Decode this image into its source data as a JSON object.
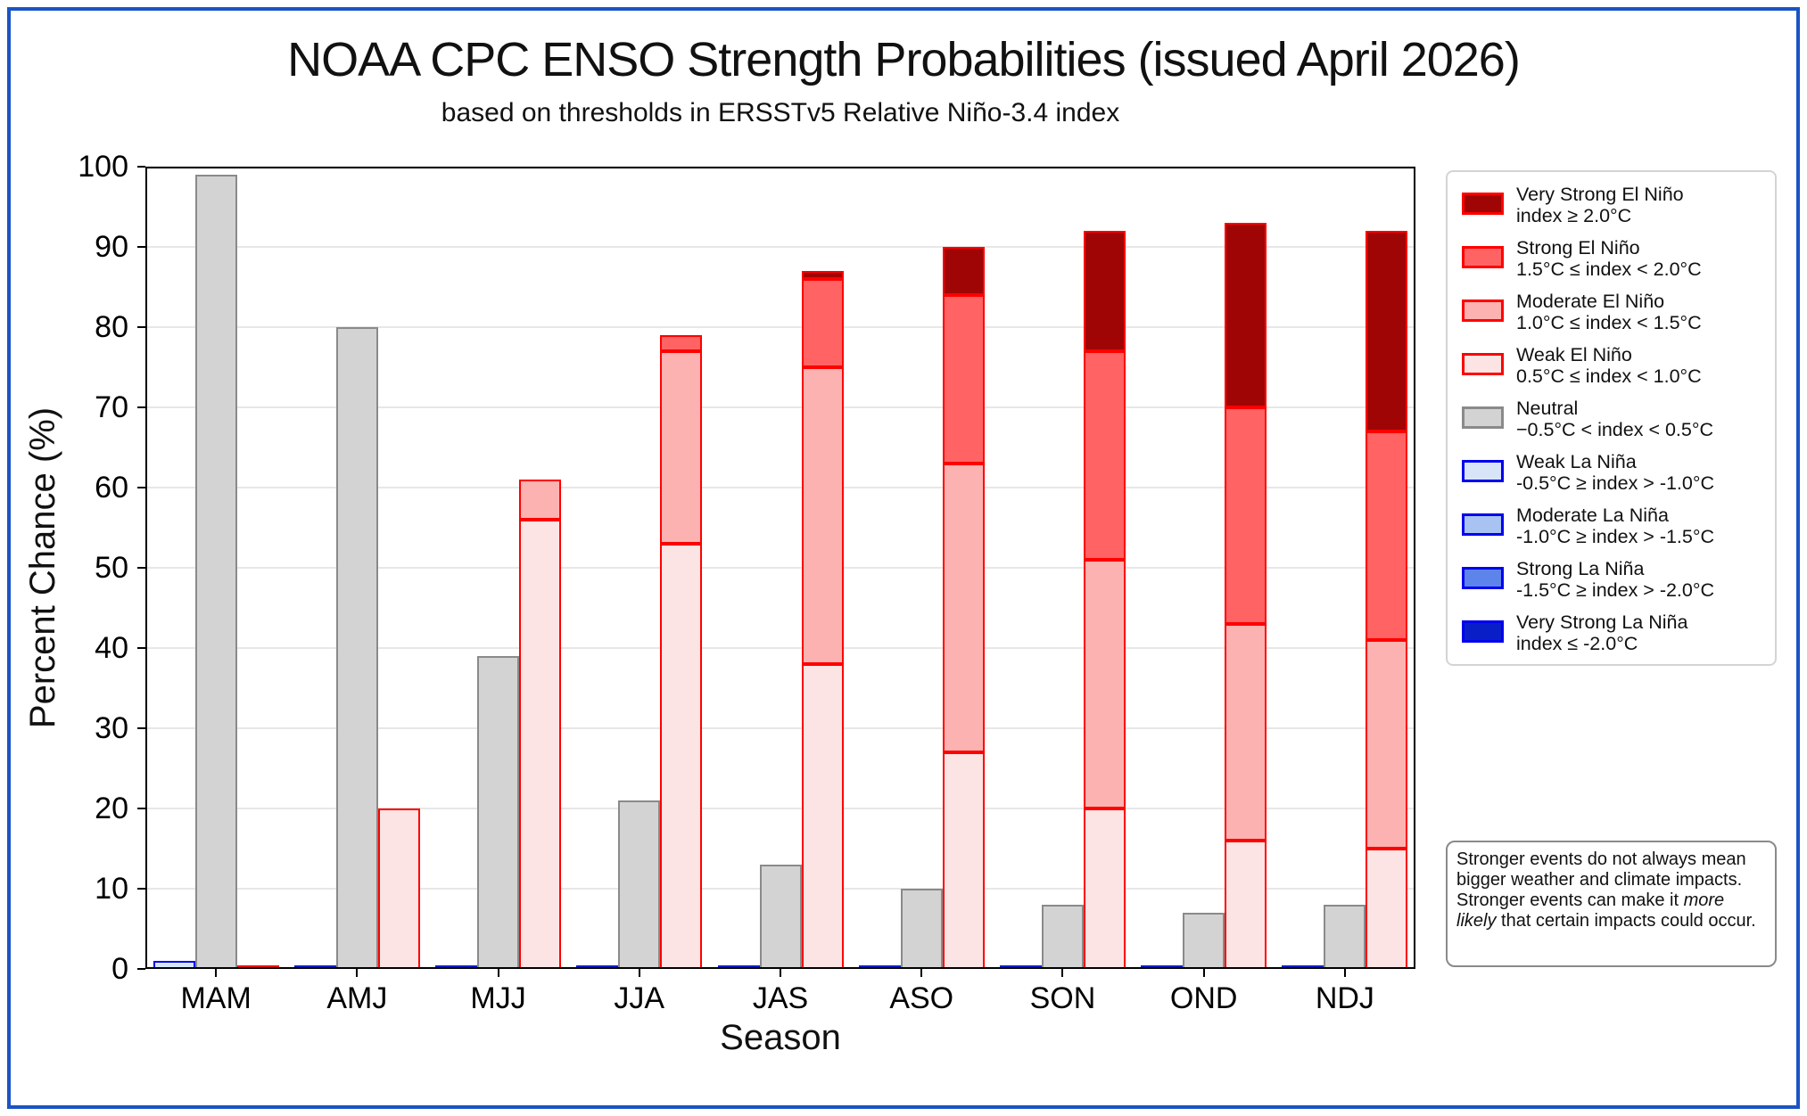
{
  "figure": {
    "border_color": "#1a54c4"
  },
  "title": "NOAA CPC ENSO Strength Probabilities (issued April 2026)",
  "subtitle": "based on thresholds in ERSSTv5 Relative Niño-3.4 index",
  "axes": {
    "xlabel": "Season",
    "ylabel": "Percent Chance (%)",
    "ytick_labels": [
      "0",
      "10",
      "20",
      "30",
      "40",
      "50",
      "60",
      "70",
      "80",
      "90",
      "100"
    ]
  },
  "chart_data": {
    "type": "bar",
    "subtype": "grouped_stacked_bars",
    "title": "NOAA CPC ENSO Strength Probabilities (issued April 2026)",
    "subtitle": "based on thresholds in ERSSTv5 Relative Niño-3.4 index",
    "xlabel": "Season",
    "ylabel": "Percent Chance (%)",
    "ylim": [
      0,
      100
    ],
    "yticks": [
      0,
      10,
      20,
      30,
      40,
      50,
      60,
      70,
      80,
      90,
      100
    ],
    "grid": true,
    "legend_position": "right",
    "categories": [
      "MAM",
      "AMJ",
      "MJJ",
      "JJA",
      "JAS",
      "ASO",
      "SON",
      "OND",
      "NDJ"
    ],
    "slots": {
      "la_nina": {
        "offset": -1,
        "zero_line": "#0a1ec8"
      },
      "neutral": {
        "offset": 0,
        "zero_line": null
      },
      "el_nino": {
        "offset": 1,
        "zero_line": "#ff0000"
      }
    },
    "series": [
      {
        "name": "Weak La Niña",
        "slot": "la_nina",
        "fill": "#d8e4f8",
        "edge": "#0000ee",
        "values": [
          1,
          0,
          0,
          0,
          0,
          0,
          0,
          0,
          0
        ]
      },
      {
        "name": "Moderate La Niña",
        "slot": "la_nina",
        "fill": "#a8c2f2",
        "edge": "#0000ee",
        "values": [
          0,
          0,
          0,
          0,
          0,
          0,
          0,
          0,
          0
        ]
      },
      {
        "name": "Strong La Niña",
        "slot": "la_nina",
        "fill": "#5c84ea",
        "edge": "#0000ee",
        "values": [
          0,
          0,
          0,
          0,
          0,
          0,
          0,
          0,
          0
        ]
      },
      {
        "name": "Very Strong La Niña",
        "slot": "la_nina",
        "fill": "#0a1ec8",
        "edge": "#0000ee",
        "values": [
          0,
          0,
          0,
          0,
          0,
          0,
          0,
          0,
          0
        ]
      },
      {
        "name": "Neutral",
        "slot": "neutral",
        "fill": "#d3d3d3",
        "edge": "#8a8a8a",
        "values": [
          99,
          80,
          39,
          21,
          13,
          10,
          8,
          7,
          8
        ]
      },
      {
        "name": "Weak El Niño",
        "slot": "el_nino",
        "fill": "#fce4e4",
        "edge": "#ff0000",
        "values": [
          0,
          20,
          56,
          53,
          38,
          27,
          20,
          16,
          15
        ]
      },
      {
        "name": "Moderate El Niño",
        "slot": "el_nino",
        "fill": "#fdb2b2",
        "edge": "#ff0000",
        "values": [
          0,
          0,
          5,
          24,
          37,
          36,
          31,
          27,
          26
        ]
      },
      {
        "name": "Strong El Niño",
        "slot": "el_nino",
        "fill": "#ff6363",
        "edge": "#ff0000",
        "values": [
          0,
          0,
          0,
          2,
          11,
          21,
          26,
          27,
          26
        ]
      },
      {
        "name": "Very Strong El Niño",
        "slot": "el_nino",
        "fill": "#a00505",
        "edge": "#ff0000",
        "values": [
          0,
          0,
          0,
          0,
          1,
          6,
          15,
          23,
          25
        ]
      }
    ]
  },
  "legend": {
    "items": [
      {
        "label": "Very Strong El Niño",
        "sublabel": "index ≥ 2.0°C",
        "fill": "#a00505",
        "edge": "#ff0000"
      },
      {
        "label": "Strong El Niño",
        "sublabel": "1.5°C ≤ index < 2.0°C",
        "fill": "#ff6363",
        "edge": "#ff0000"
      },
      {
        "label": "Moderate El Niño",
        "sublabel": "1.0°C ≤ index < 1.5°C",
        "fill": "#fdb2b2",
        "edge": "#ff0000"
      },
      {
        "label": "Weak El Niño",
        "sublabel": "0.5°C ≤ index < 1.0°C",
        "fill": "#fce4e4",
        "edge": "#ff0000"
      },
      {
        "label": "Neutral",
        "sublabel": "−0.5°C < index < 0.5°C",
        "fill": "#d3d3d3",
        "edge": "#8a8a8a"
      },
      {
        "label": "Weak La Niña",
        "sublabel": "-0.5°C ≥ index > -1.0°C",
        "fill": "#d8e4f8",
        "edge": "#0000ee"
      },
      {
        "label": "Moderate La Niña",
        "sublabel": "-1.0°C ≥ index > -1.5°C",
        "fill": "#a8c2f2",
        "edge": "#0000ee"
      },
      {
        "label": "Strong La Niña",
        "sublabel": "-1.5°C ≥ index > -2.0°C",
        "fill": "#5c84ea",
        "edge": "#0000ee"
      },
      {
        "label": "Very Strong La Niña",
        "sublabel": "index ≤ -2.0°C",
        "fill": "#0a1ec8",
        "edge": "#0000ee"
      }
    ]
  },
  "note": {
    "part1": "Stronger events do not always mean bigger weather and climate impacts. Stronger events can make it ",
    "italic": "more likely",
    "part2": " that certain impacts could occur."
  }
}
